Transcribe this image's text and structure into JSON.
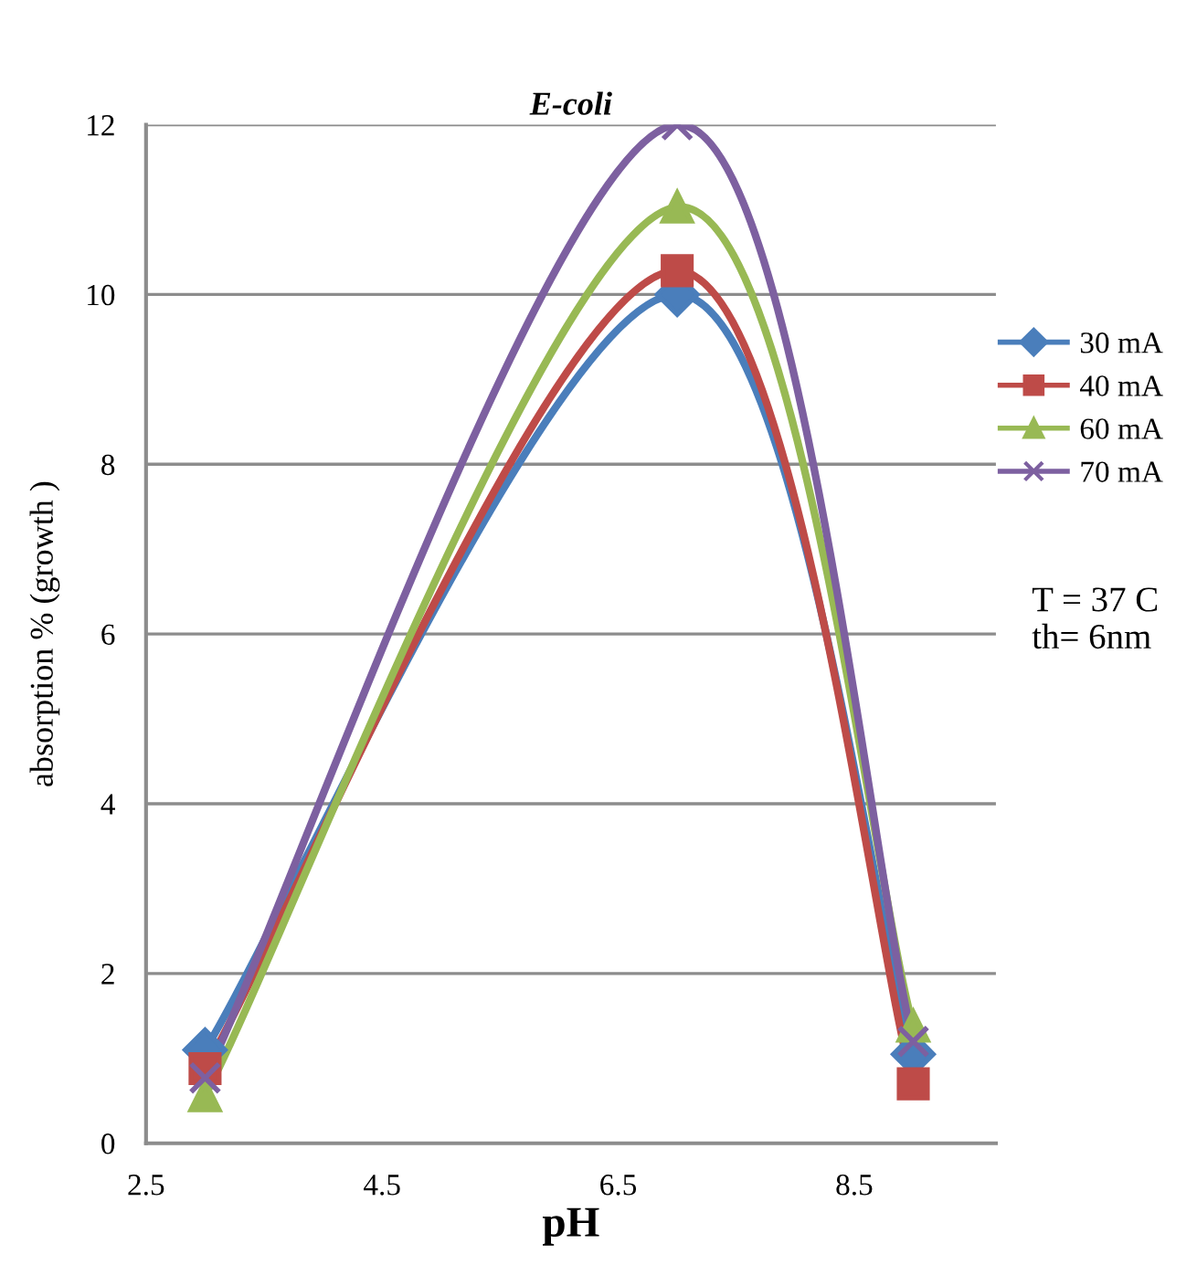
{
  "chart_data": {
    "type": "line",
    "title": "E-coli",
    "xlabel": "pH",
    "ylabel": "absorption % (growth )",
    "x": [
      3,
      7,
      9
    ],
    "series": [
      {
        "name": "30 mA",
        "color": "#4a7ebb",
        "values": [
          1.1,
          10.0,
          1.05
        ],
        "marker": "diamond"
      },
      {
        "name": "40 mA",
        "color": "#be4b48",
        "values": [
          0.88,
          10.28,
          0.7
        ],
        "marker": "square"
      },
      {
        "name": "60 mA",
        "color": "#98b954",
        "values": [
          0.56,
          11.03,
          1.38
        ],
        "marker": "triangle"
      },
      {
        "name": "70 mA",
        "color": "#7d60a0",
        "values": [
          0.77,
          12.0,
          1.2
        ],
        "marker": "cross"
      }
    ],
    "xlim": [
      2.5,
      9.7
    ],
    "xticks": [
      2.5,
      4.5,
      6.5,
      8.5
    ],
    "ylim": [
      0,
      12
    ],
    "yticks": [
      0,
      2,
      4,
      6,
      8,
      10,
      12
    ],
    "grid": "y",
    "legend": "right",
    "line_style": "solid",
    "annotations": [
      "T = 37 C\nth= 6nm"
    ]
  }
}
